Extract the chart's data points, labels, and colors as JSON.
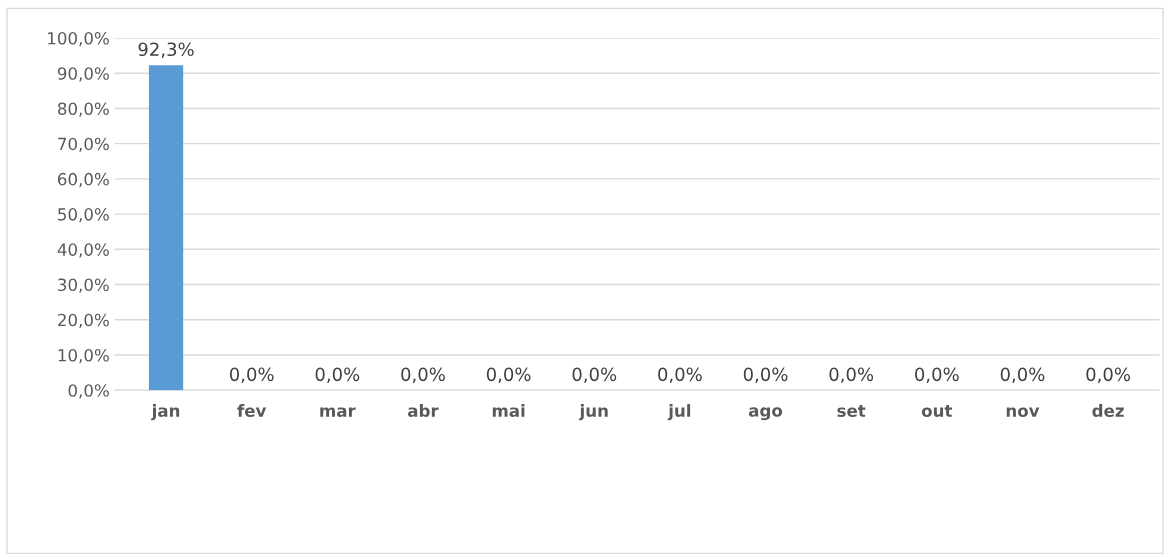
{
  "chart_data": {
    "type": "bar",
    "categories": [
      "jan",
      "fev",
      "mar",
      "abr",
      "mai",
      "jun",
      "jul",
      "ago",
      "set",
      "out",
      "nov",
      "dez"
    ],
    "values": [
      92.3,
      0,
      0,
      0,
      0,
      0,
      0,
      0,
      0,
      0,
      0,
      0
    ],
    "value_labels": [
      "92,3%",
      "0,0%",
      "0,0%",
      "0,0%",
      "0,0%",
      "0,0%",
      "0,0%",
      "0,0%",
      "0,0%",
      "0,0%",
      "0,0%",
      "0,0%"
    ],
    "color": "#5b9bd5",
    "ylim": [
      0,
      100
    ],
    "yticks": [
      {
        "value": 0,
        "label": "0,0%"
      },
      {
        "value": 10,
        "label": "10,0%"
      },
      {
        "value": 20,
        "label": "20,0%"
      },
      {
        "value": 30,
        "label": "30,0%"
      },
      {
        "value": 40,
        "label": "40,0%"
      },
      {
        "value": 50,
        "label": "50,0%"
      },
      {
        "value": 60,
        "label": "60,0%"
      },
      {
        "value": 70,
        "label": "70,0%"
      },
      {
        "value": 80,
        "label": "80,0%"
      },
      {
        "value": 90,
        "label": "90,0%"
      },
      {
        "value": 100,
        "label": "100,0%"
      }
    ],
    "grid": "y"
  }
}
